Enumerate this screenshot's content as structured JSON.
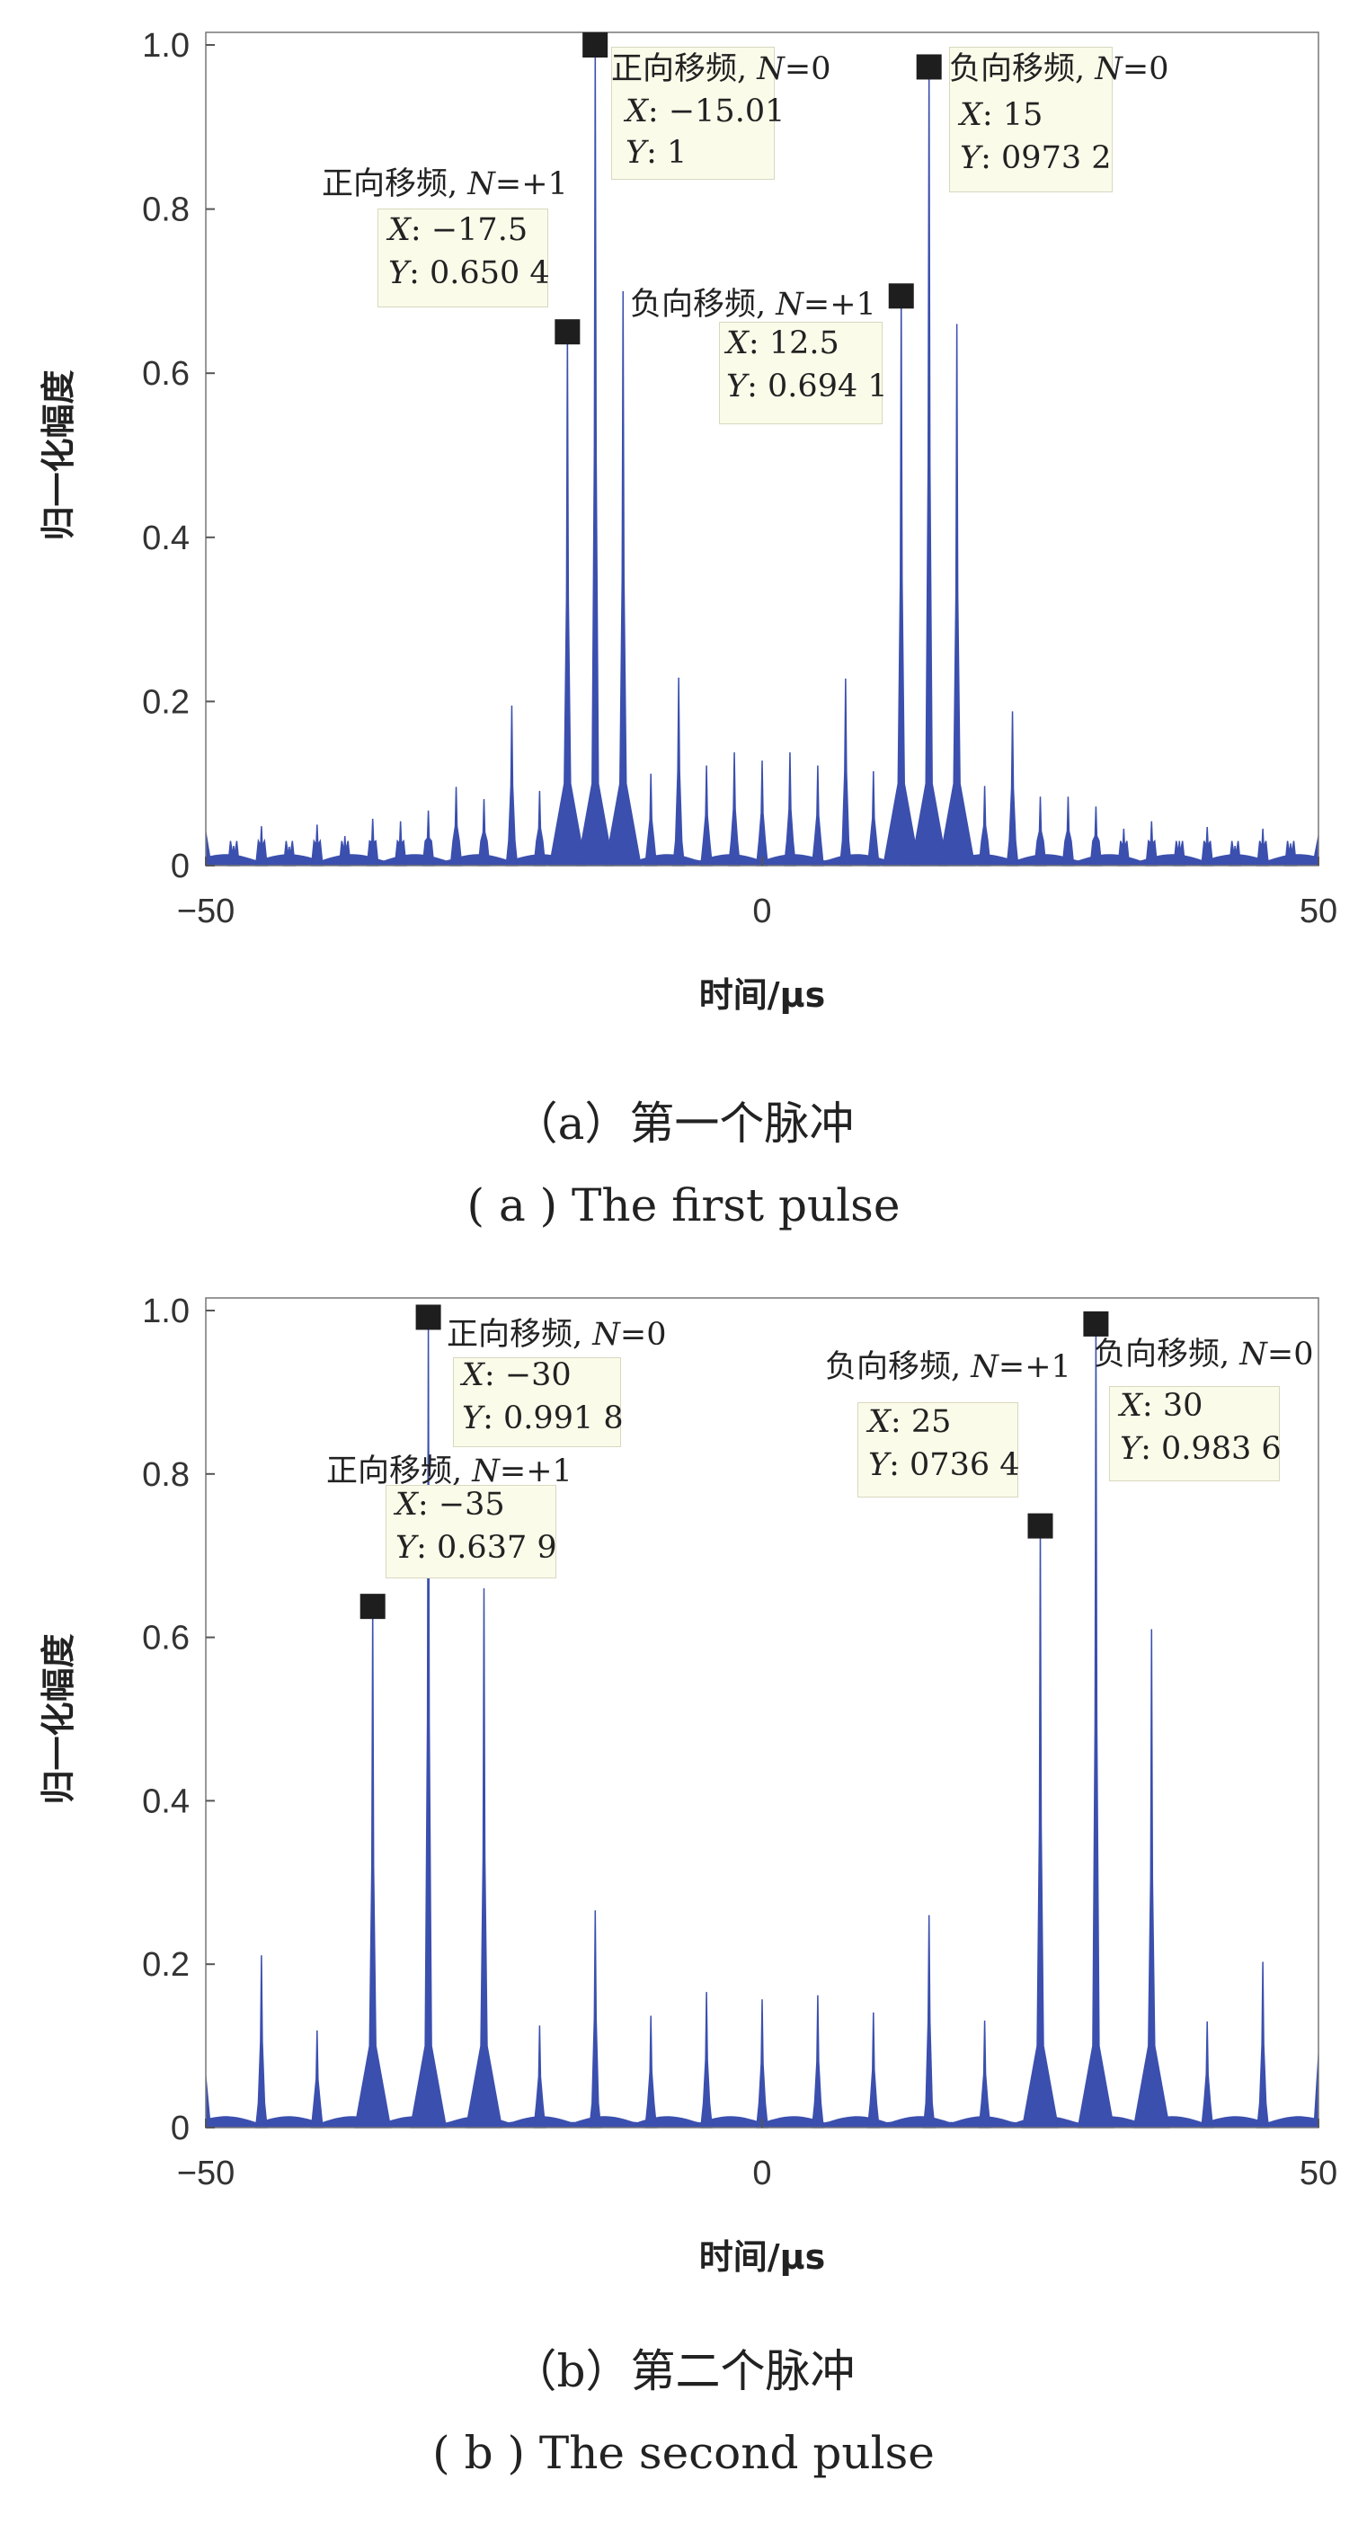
{
  "colors": {
    "line": "#3b4fae",
    "marker": "#1e1e1e",
    "tip_bg": "#fbfbea"
  },
  "chart_data": [
    {
      "type": "line",
      "title": "（a）第一个脉冲",
      "subtitle": "( a ) The first pulse",
      "xlabel": "时间/μs",
      "ylabel": "归一化幅度",
      "xlim": [
        -50,
        50
      ],
      "ylim": [
        0,
        1
      ],
      "xticks": [
        -50,
        0,
        50
      ],
      "xtick_labels": [
        "−50",
        "0",
        "50"
      ],
      "yticks": [
        0,
        0.2,
        0.4,
        0.6,
        0.8,
        1.0
      ],
      "ytick_labels": [
        "0",
        "0.2",
        "0.4",
        "0.6",
        "0.8",
        "1.0"
      ],
      "grid": false,
      "edge_levels": [
        0.045,
        0.04
      ],
      "peaks": {
        "x": [
          -47.5,
          -45,
          -42.5,
          -40,
          -37.5,
          -35,
          -32.5,
          -30,
          -27.5,
          -25,
          -22.5,
          -20,
          -17.5,
          -15,
          -12.5,
          -10,
          -7.5,
          -5,
          -2.5,
          0,
          2.5,
          5,
          7.5,
          10,
          12.5,
          15,
          17.5,
          20,
          22.5,
          25,
          27.5,
          30,
          32.5,
          35,
          37.5,
          40,
          42.5,
          45,
          47.5
        ],
        "y": [
          0.024,
          0.048,
          0.023,
          0.05,
          0.036,
          0.057,
          0.054,
          0.067,
          0.096,
          0.081,
          0.195,
          0.091,
          0.6504,
          1.0,
          0.7,
          0.112,
          0.229,
          0.122,
          0.138,
          0.128,
          0.138,
          0.122,
          0.228,
          0.115,
          0.6941,
          0.9732,
          0.66,
          0.097,
          0.188,
          0.084,
          0.084,
          0.072,
          0.045,
          0.054,
          0.03,
          0.047,
          0.024,
          0.045,
          0.027
        ]
      },
      "annotations": [
        {
          "title": "正向移频, ",
          "n_var": "N",
          "n_val": "=0",
          "x_var": "X",
          "x_val": ": −15.01",
          "y_var": "Y",
          "y_val": ": 1",
          "x": -15.01,
          "y": 1
        },
        {
          "title": "负向移频, ",
          "n_var": "N",
          "n_val": "=0",
          "x_var": "X",
          "x_val": ": 15",
          "y_var": "Y",
          "y_val": ": 0973 2",
          "x": 15,
          "y": 0.9732
        },
        {
          "title": "正向移频, ",
          "n_var": "N",
          "n_val": "=+1",
          "x_var": "X",
          "x_val": ": −17.5",
          "y_var": "Y",
          "y_val": ": 0.650 4",
          "x": -17.5,
          "y": 0.6504
        },
        {
          "title": "负向移频, ",
          "n_var": "N",
          "n_val": "=+1",
          "x_var": "X",
          "x_val": ": 12.5",
          "y_var": "Y",
          "y_val": ": 0.694 1",
          "x": 12.5,
          "y": 0.6941
        }
      ]
    },
    {
      "type": "line",
      "title": "（b）第二个脉冲",
      "subtitle": "( b ) The second pulse",
      "xlabel": "时间/μs",
      "ylabel": "归一化幅度",
      "xlim": [
        -50,
        50
      ],
      "ylim": [
        0,
        1
      ],
      "xticks": [
        -50,
        0,
        50
      ],
      "xtick_labels": [
        "−50",
        "0",
        "50"
      ],
      "yticks": [
        0,
        0.2,
        0.4,
        0.6,
        0.8,
        1.0
      ],
      "ytick_labels": [
        "0",
        "0.2",
        "0.4",
        "0.6",
        "0.8",
        "1.0"
      ],
      "grid": false,
      "edge_levels": [
        0.07,
        0.1
      ],
      "peaks": {
        "x": [
          -45,
          -40,
          -35,
          -30,
          -25,
          -20,
          -15,
          -10,
          -5,
          0,
          5,
          10,
          15,
          20,
          25,
          30,
          35,
          40,
          45
        ],
        "y": [
          0.211,
          0.119,
          0.6379,
          0.9918,
          0.66,
          0.125,
          0.266,
          0.137,
          0.166,
          0.157,
          0.162,
          0.141,
          0.26,
          0.131,
          0.7364,
          0.9836,
          0.61,
          0.13,
          0.203
        ]
      },
      "annotations": [
        {
          "title": "正向移频, ",
          "n_var": "N",
          "n_val": "=0",
          "x_var": "X",
          "x_val": ": −30",
          "y_var": "Y",
          "y_val": ": 0.991 8",
          "x": -30,
          "y": 0.9918
        },
        {
          "title": "正向移频, ",
          "n_var": "N",
          "n_val": "=+1",
          "x_var": "X",
          "x_val": ": −35",
          "y_var": "Y",
          "y_val": ": 0.637 9",
          "x": -35,
          "y": 0.6379
        },
        {
          "title": "负向移频, ",
          "n_var": "N",
          "n_val": "=+1",
          "x_var": "X",
          "x_val": ": 25",
          "y_var": "Y",
          "y_val": ": 0736 4",
          "x": 25,
          "y": 0.7364
        },
        {
          "title": "负向移频, ",
          "n_var": "N",
          "n_val": "=0",
          "x_var": "X",
          "x_val": ": 30",
          "y_var": "Y",
          "y_val": ": 0.983 6",
          "x": 30,
          "y": 0.9836
        }
      ]
    }
  ]
}
